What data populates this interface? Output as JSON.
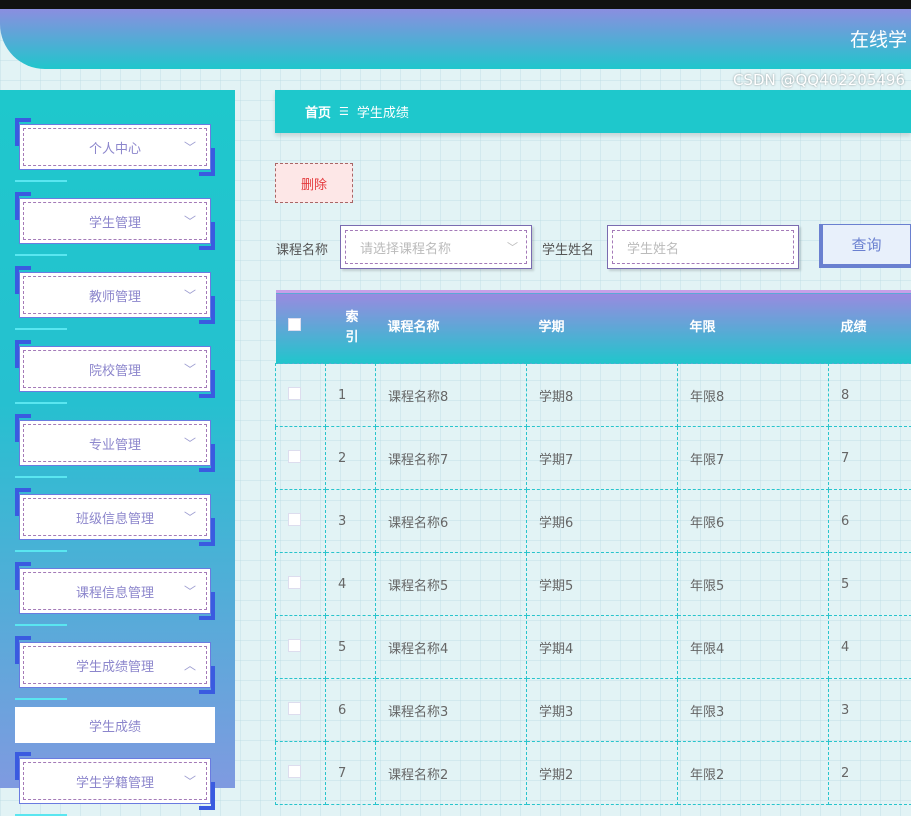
{
  "header": {
    "title": "在线学"
  },
  "sidebar": {
    "menus": [
      {
        "label": "个人中心",
        "chevron": "chevron-down"
      },
      {
        "label": "学生管理",
        "chevron": "chevron-down"
      },
      {
        "label": "教师管理",
        "chevron": "chevron-down"
      },
      {
        "label": "院校管理",
        "chevron": "chevron-down"
      },
      {
        "label": "专业管理",
        "chevron": "chevron-down"
      },
      {
        "label": "班级信息管理",
        "chevron": "chevron-down"
      },
      {
        "label": "课程信息管理",
        "chevron": "chevron-down"
      },
      {
        "label": "学生成绩管理",
        "chevron": "chevron-up"
      },
      {
        "label": "学生学籍管理",
        "chevron": "chevron-down"
      }
    ],
    "active_sub": "学生成绩"
  },
  "breadcrumb": {
    "home": "首页",
    "sep": "☰",
    "current": "学生成绩"
  },
  "toolbar": {
    "delete": "删除"
  },
  "search": {
    "course_label": "课程名称",
    "course_placeholder": "请选择课程名称",
    "student_label": "学生姓名",
    "student_placeholder": "学生姓名",
    "query": "查询"
  },
  "table": {
    "headers": [
      "",
      "索引",
      "课程名称",
      "学期",
      "年限",
      "成绩"
    ],
    "rows": [
      [
        "1",
        "课程名称8",
        "学期8",
        "年限8",
        "8"
      ],
      [
        "2",
        "课程名称7",
        "学期7",
        "年限7",
        "7"
      ],
      [
        "3",
        "课程名称6",
        "学期6",
        "年限6",
        "6"
      ],
      [
        "4",
        "课程名称5",
        "学期5",
        "年限5",
        "5"
      ],
      [
        "5",
        "课程名称4",
        "学期4",
        "年限4",
        "4"
      ],
      [
        "6",
        "课程名称3",
        "学期3",
        "年限3",
        "3"
      ],
      [
        "7",
        "课程名称2",
        "学期2",
        "年限2",
        "2"
      ]
    ]
  },
  "watermark": "CSDN @QQ402205496",
  "colors": {
    "primary": "#1ec8cc",
    "accent": "#8b8ee0",
    "danger": "#e4393c"
  }
}
